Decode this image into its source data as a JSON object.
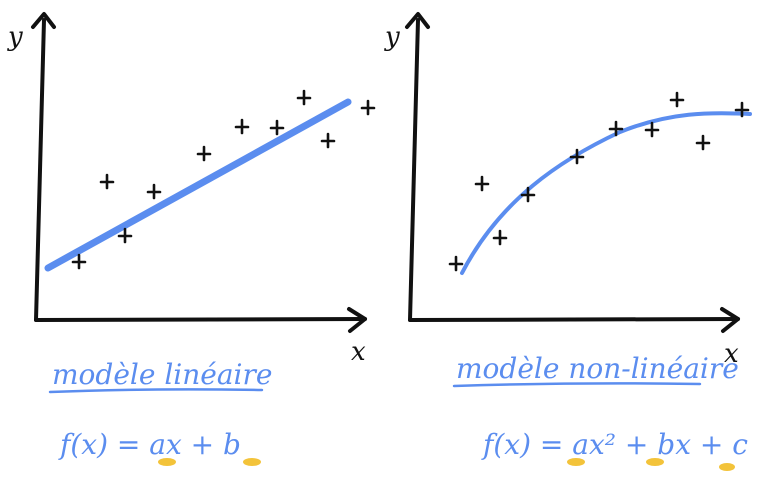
{
  "left_panel": {
    "y_label": "y",
    "x_label": "x",
    "title": "modèle linéaire",
    "formula": {
      "lhs": "f(x) = ",
      "a": "a",
      "mid": "x + ",
      "b": "b"
    },
    "points": [
      [
        1,
        1
      ],
      [
        2,
        4
      ],
      [
        3,
        1.5
      ],
      [
        4,
        3
      ],
      [
        5,
        5
      ],
      [
        6,
        6
      ],
      [
        7,
        6
      ],
      [
        8,
        7
      ],
      [
        9,
        5.5
      ],
      [
        10,
        6.5
      ]
    ]
  },
  "right_panel": {
    "y_label": "y",
    "x_label": "x",
    "title": "modèle non-linéaire",
    "formula": {
      "lhs": "f(x) = ",
      "a": "a",
      "mid1": "x² + ",
      "b": "b",
      "mid2": "x + ",
      "c": "c"
    },
    "points": [
      [
        1,
        1
      ],
      [
        2,
        4
      ],
      [
        3,
        1.5
      ],
      [
        4,
        3
      ],
      [
        5,
        5
      ],
      [
        6,
        6
      ],
      [
        7,
        6
      ],
      [
        8,
        7
      ],
      [
        9,
        5.5
      ],
      [
        10,
        6.5
      ]
    ]
  },
  "colors": {
    "accent": "#5b8def",
    "highlight": "#f3c33a",
    "ink": "#111111"
  }
}
